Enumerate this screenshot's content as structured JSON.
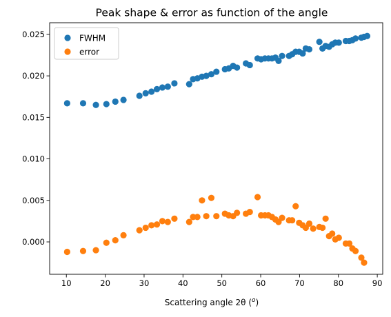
{
  "chart_data": {
    "type": "scatter",
    "title": "Peak shape & error as function of the angle",
    "xlabel": "Scattering angle 2θ (",
    "xlabel_unit": "o",
    "xlabel_close": ")",
    "ylabel": "",
    "xlim": [
      5.7,
      91.4
    ],
    "ylim": [
      -0.0039,
      0.0264
    ],
    "xticks": [
      10,
      20,
      30,
      40,
      50,
      60,
      70,
      80,
      90
    ],
    "xtick_labels": [
      "10",
      "20",
      "30",
      "40",
      "50",
      "60",
      "70",
      "80",
      "90"
    ],
    "yticks": [
      0.0,
      0.005,
      0.01,
      0.015,
      0.02,
      0.025
    ],
    "ytick_labels": [
      "0.000",
      "0.005",
      "0.010",
      "0.015",
      "0.020",
      "0.025"
    ],
    "grid": false,
    "legend_position": "top-left",
    "series": [
      {
        "name": "FWHM",
        "color": "#1f77b4",
        "points": [
          [
            10.2,
            0.0167
          ],
          [
            14.3,
            0.0167
          ],
          [
            17.6,
            0.0165
          ],
          [
            20.3,
            0.0166
          ],
          [
            22.6,
            0.0169
          ],
          [
            24.7,
            0.0171
          ],
          [
            28.8,
            0.0176
          ],
          [
            30.4,
            0.0179
          ],
          [
            31.9,
            0.0181
          ],
          [
            33.3,
            0.0184
          ],
          [
            34.7,
            0.0186
          ],
          [
            36.1,
            0.0187
          ],
          [
            37.8,
            0.0191
          ],
          [
            41.6,
            0.019
          ],
          [
            42.6,
            0.0196
          ],
          [
            43.7,
            0.0197
          ],
          [
            44.9,
            0.0199
          ],
          [
            46.0,
            0.02
          ],
          [
            47.3,
            0.0202
          ],
          [
            48.6,
            0.0205
          ],
          [
            50.8,
            0.0208
          ],
          [
            51.8,
            0.0209
          ],
          [
            52.9,
            0.0212
          ],
          [
            53.9,
            0.021
          ],
          [
            56.2,
            0.0215
          ],
          [
            57.2,
            0.0213
          ],
          [
            59.2,
            0.0221
          ],
          [
            60.1,
            0.022
          ],
          [
            61.1,
            0.0221
          ],
          [
            62.0,
            0.0221
          ],
          [
            62.9,
            0.0221
          ],
          [
            63.8,
            0.0222
          ],
          [
            64.6,
            0.0218
          ],
          [
            65.5,
            0.0224
          ],
          [
            67.3,
            0.0224
          ],
          [
            68.1,
            0.0226
          ],
          [
            69.0,
            0.0229
          ],
          [
            69.9,
            0.0229
          ],
          [
            70.8,
            0.0227
          ],
          [
            71.6,
            0.0233
          ],
          [
            72.5,
            0.0232
          ],
          [
            75.1,
            0.0241
          ],
          [
            75.9,
            0.0233
          ],
          [
            76.7,
            0.0236
          ],
          [
            77.6,
            0.0235
          ],
          [
            78.4,
            0.0238
          ],
          [
            79.2,
            0.024
          ],
          [
            80.1,
            0.024
          ],
          [
            81.9,
            0.0242
          ],
          [
            82.8,
            0.0242
          ],
          [
            83.6,
            0.0243
          ],
          [
            84.4,
            0.0245
          ],
          [
            85.9,
            0.0246
          ],
          [
            86.6,
            0.0247
          ],
          [
            87.4,
            0.0248
          ]
        ]
      },
      {
        "name": "error",
        "color": "#ff7f0e",
        "points": [
          [
            10.2,
            -0.0012
          ],
          [
            14.3,
            -0.0011
          ],
          [
            17.6,
            -0.001
          ],
          [
            20.3,
            -0.0001
          ],
          [
            22.6,
            0.0002
          ],
          [
            24.7,
            0.0008
          ],
          [
            28.8,
            0.0014
          ],
          [
            30.4,
            0.0017
          ],
          [
            31.9,
            0.002
          ],
          [
            33.3,
            0.0021
          ],
          [
            34.7,
            0.0025
          ],
          [
            36.1,
            0.0024
          ],
          [
            37.8,
            0.0028
          ],
          [
            41.6,
            0.0024
          ],
          [
            42.6,
            0.003
          ],
          [
            43.7,
            0.003
          ],
          [
            44.9,
            0.005
          ],
          [
            46.0,
            0.0031
          ],
          [
            47.3,
            0.0053
          ],
          [
            48.6,
            0.0031
          ],
          [
            50.8,
            0.0034
          ],
          [
            51.8,
            0.0032
          ],
          [
            52.9,
            0.0031
          ],
          [
            53.9,
            0.0035
          ],
          [
            56.2,
            0.0034
          ],
          [
            57.2,
            0.0036
          ],
          [
            59.2,
            0.0054
          ],
          [
            60.1,
            0.0032
          ],
          [
            61.1,
            0.0032
          ],
          [
            62.0,
            0.0032
          ],
          [
            62.9,
            0.003
          ],
          [
            63.8,
            0.0027
          ],
          [
            64.6,
            0.0024
          ],
          [
            65.5,
            0.0029
          ],
          [
            67.3,
            0.0026
          ],
          [
            68.1,
            0.0026
          ],
          [
            69.0,
            0.0043
          ],
          [
            69.9,
            0.0023
          ],
          [
            70.8,
            0.002
          ],
          [
            71.6,
            0.0017
          ],
          [
            72.5,
            0.0022
          ],
          [
            73.5,
            0.0016
          ],
          [
            75.1,
            0.0018
          ],
          [
            75.9,
            0.0017
          ],
          [
            76.7,
            0.0028
          ],
          [
            77.6,
            0.0007
          ],
          [
            78.4,
            0.001
          ],
          [
            79.2,
            0.0003
          ],
          [
            80.1,
            0.0005
          ],
          [
            81.9,
            -0.0002
          ],
          [
            82.8,
            -0.0002
          ],
          [
            83.6,
            -0.0008
          ],
          [
            84.4,
            -0.0011
          ],
          [
            85.9,
            -0.0019
          ],
          [
            86.6,
            -0.0025
          ]
        ]
      }
    ]
  }
}
